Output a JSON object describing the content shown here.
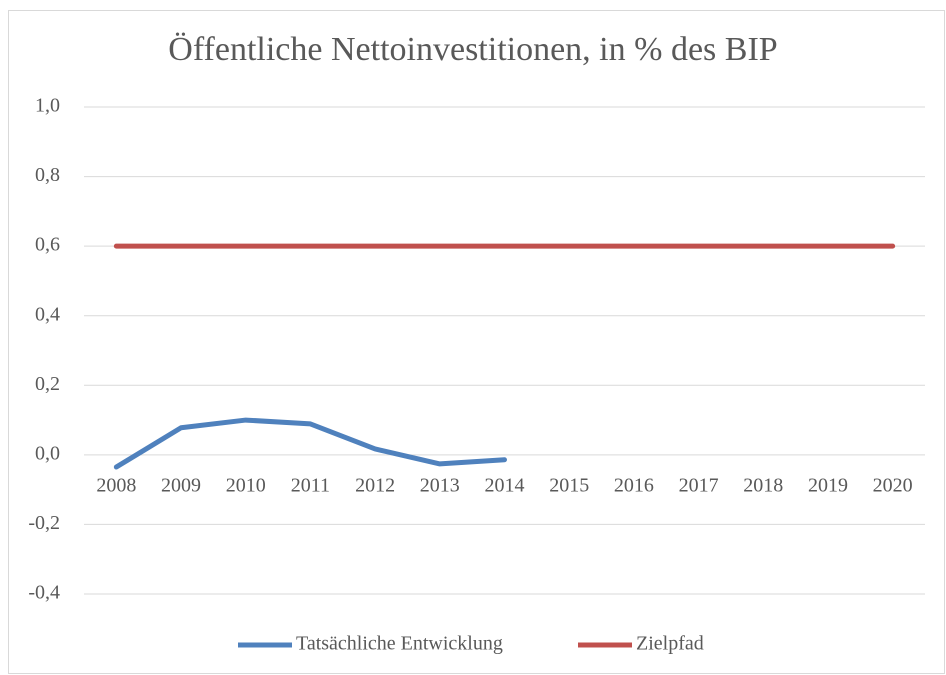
{
  "chart_data": {
    "type": "line",
    "title": "Öffentliche Nettoinvestitionen, in % des BIP",
    "categories": [
      "2008",
      "2009",
      "2010",
      "2011",
      "2012",
      "2013",
      "2014",
      "2015",
      "2016",
      "2017",
      "2018",
      "2019",
      "2020"
    ],
    "series": [
      {
        "name": "Tatsächliche Entwicklung",
        "color": "#4f81bd",
        "values": [
          -0.035,
          0.078,
          0.1,
          0.089,
          0.017,
          -0.026,
          -0.014,
          null,
          null,
          null,
          null,
          null,
          null
        ]
      },
      {
        "name": "Zielpfad",
        "color": "#c0504d",
        "values": [
          0.6,
          0.6,
          0.6,
          0.6,
          0.6,
          0.6,
          0.6,
          0.6,
          0.6,
          0.6,
          0.6,
          0.6,
          0.6
        ]
      }
    ],
    "ylim": [
      -0.4,
      1.0
    ],
    "yticks": [
      {
        "value": -0.4,
        "label": "-0,4"
      },
      {
        "value": -0.2,
        "label": "-0,2"
      },
      {
        "value": 0,
        "label": "0,0"
      },
      {
        "value": 0.2,
        "label": "0,2"
      },
      {
        "value": 0.4,
        "label": "0,4"
      },
      {
        "value": 0.6,
        "label": "0,6"
      },
      {
        "value": 0.8,
        "label": "0,8"
      },
      {
        "value": 1.0,
        "label": "1,0"
      }
    ],
    "grid": true,
    "legend": "bottom"
  }
}
